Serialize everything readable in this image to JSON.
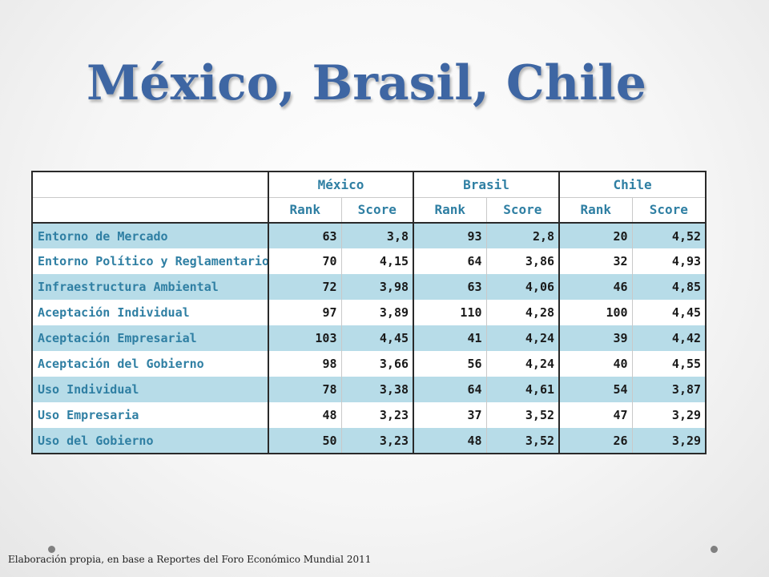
{
  "title": "México, Brasil, Chile",
  "table": {
    "countries": [
      "México",
      "Brasil",
      "Chile"
    ],
    "subheaders": [
      "Rank",
      "Score",
      "Rank",
      "Score",
      "Rank",
      "Score"
    ],
    "rows": [
      {
        "label": "Entorno de Mercado",
        "values": [
          "63",
          "3,8",
          "93",
          "2,8",
          "20",
          "4,52"
        ]
      },
      {
        "label": "Entorno Político y Reglamentario",
        "values": [
          "70",
          "4,15",
          "64",
          "3,86",
          "32",
          "4,93"
        ]
      },
      {
        "label": "Infraestructura Ambiental",
        "values": [
          "72",
          "3,98",
          "63",
          "4,06",
          "46",
          "4,85"
        ]
      },
      {
        "label": "Aceptación Individual",
        "values": [
          "97",
          "3,89",
          "110",
          "4,28",
          "100",
          "4,45"
        ]
      },
      {
        "label": "Aceptación Empresarial",
        "values": [
          "103",
          "4,45",
          "41",
          "4,24",
          "39",
          "4,42"
        ]
      },
      {
        "label": "Aceptación del Gobierno",
        "values": [
          "98",
          "3,66",
          "56",
          "4,24",
          "40",
          "4,55"
        ]
      },
      {
        "label": "Uso Individual",
        "values": [
          "78",
          "3,38",
          "64",
          "4,61",
          "54",
          "3,87"
        ]
      },
      {
        "label": "Uso Empresaria",
        "values": [
          "48",
          "3,23",
          "37",
          "3,52",
          "47",
          "3,29"
        ]
      },
      {
        "label": "Uso del Gobierno",
        "values": [
          "50",
          "3,23",
          "48",
          "3,52",
          "26",
          "3,29"
        ]
      }
    ]
  },
  "footer": "Elaboración propia, en base a Reportes del Foro Económico Mundial 2011"
}
